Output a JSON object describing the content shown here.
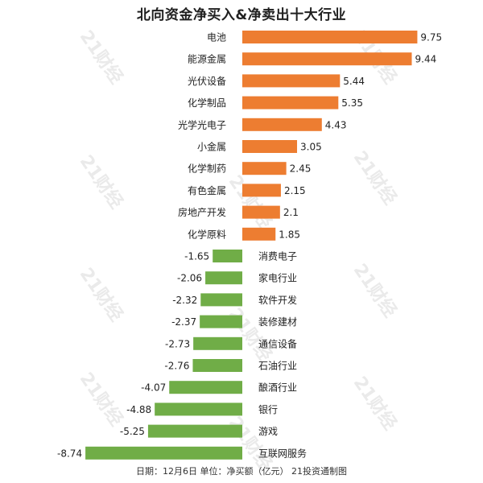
{
  "chart_data": {
    "type": "bar",
    "orientation": "horizontal",
    "title": "北向资金净买入&净卖出十大行业",
    "footer": "日期：12月6日 单位：净买额（亿元） 21投资通制图",
    "watermark": "21财经",
    "categories": [
      "电池",
      "能源金属",
      "光伏设备",
      "化学制品",
      "光学光电子",
      "小金属",
      "化学制药",
      "有色金属",
      "房地产开发",
      "化学原料",
      "消费电子",
      "家电行业",
      "软件开发",
      "装修建材",
      "通信设备",
      "石油行业",
      "酿酒行业",
      "银行",
      "游戏",
      "互联网服务"
    ],
    "values": [
      9.75,
      9.44,
      5.44,
      5.35,
      4.43,
      3.05,
      2.45,
      2.15,
      2.1,
      1.85,
      -1.65,
      -2.06,
      -2.32,
      -2.37,
      -2.73,
      -2.76,
      -4.07,
      -4.88,
      -5.25,
      -8.74
    ],
    "value_labels": [
      "9.75",
      "9.44",
      "5.44",
      "5.35",
      "4.43",
      "3.05",
      "2.45",
      "2.15",
      "2.1",
      "1.85",
      "-1.65",
      "-2.06",
      "-2.32",
      "-2.37",
      "-2.73",
      "-2.76",
      "-4.07",
      "-4.88",
      "-5.25",
      "-8.74"
    ],
    "colors": {
      "positive": "#ed7d31",
      "negative": "#70ad47"
    },
    "xlim": [
      -8.74,
      9.75
    ],
    "grid": false,
    "legend": "none"
  }
}
